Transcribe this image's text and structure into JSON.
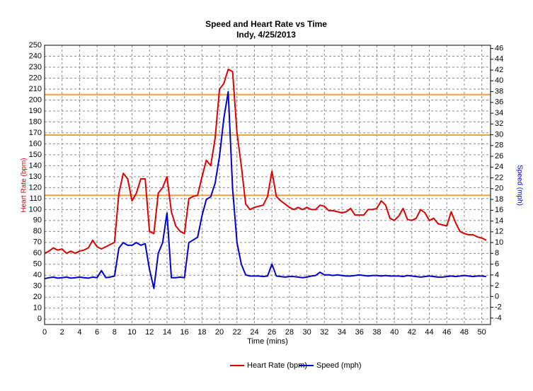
{
  "chart_data": {
    "type": "line",
    "title": "Speed and Heart Rate vs Time",
    "subtitle": "Indy, 4/25/2013",
    "xlabel": "Time (mins)",
    "ylabel": "Heart Rate (bpm)",
    "y2label": "Speed (mph)",
    "xlim": [
      0,
      51
    ],
    "xticks": [
      0,
      2,
      4,
      6,
      8,
      10,
      12,
      14,
      16,
      18,
      20,
      22,
      24,
      26,
      28,
      30,
      32,
      34,
      36,
      38,
      40,
      42,
      44,
      46,
      48,
      50
    ],
    "ylim": [
      -5,
      250
    ],
    "yticks": [
      0,
      10,
      20,
      30,
      40,
      50,
      60,
      70,
      80,
      90,
      100,
      110,
      120,
      130,
      140,
      150,
      160,
      170,
      180,
      190,
      200,
      210,
      220,
      230,
      240,
      250
    ],
    "y2lim": [
      -5.2,
      46.6
    ],
    "y2ticks": [
      -4,
      -2,
      0,
      2,
      4,
      6,
      8,
      10,
      12,
      14,
      16,
      18,
      20,
      22,
      24,
      26,
      28,
      30,
      32,
      34,
      36,
      38,
      40,
      42,
      44,
      46
    ],
    "grid": true,
    "reference_lines": [
      {
        "value": 205,
        "color": "#f5a040"
      },
      {
        "value": 168,
        "color": "#f5a040"
      },
      {
        "value": 113,
        "color": "#f5a040"
      }
    ],
    "x": [
      0,
      0.5,
      1,
      1.5,
      2,
      2.5,
      3,
      3.5,
      4,
      4.5,
      5,
      5.5,
      6,
      6.5,
      7,
      7.5,
      8,
      8.5,
      9,
      9.5,
      10,
      10.5,
      11,
      11.5,
      12,
      12.5,
      13,
      13.5,
      14,
      14.5,
      15,
      15.5,
      16,
      16.5,
      17,
      17.5,
      18,
      18.5,
      19,
      19.5,
      20,
      20.5,
      21,
      21.5,
      22,
      22.5,
      23,
      23.5,
      24,
      24.5,
      25,
      25.5,
      26,
      26.5,
      27,
      27.5,
      28,
      28.5,
      29,
      29.5,
      30,
      30.5,
      31,
      31.5,
      32,
      32.5,
      33,
      33.5,
      34,
      34.5,
      35,
      35.5,
      36,
      36.5,
      37,
      37.5,
      38,
      38.5,
      39,
      39.5,
      40,
      40.5,
      41,
      41.5,
      42,
      42.5,
      43,
      43.5,
      44,
      44.5,
      45,
      45.5,
      46,
      46.5,
      47,
      47.5,
      48,
      48.5,
      49,
      49.5,
      50,
      50.5
    ],
    "series": [
      {
        "name": "Heart Rate (bpm)",
        "color": "#e00000",
        "axis": "y",
        "values": [
          60,
          62,
          65,
          63,
          64,
          60,
          62,
          60,
          62,
          63,
          65,
          72,
          66,
          64,
          66,
          68,
          70,
          115,
          133,
          128,
          108,
          115,
          128,
          128,
          80,
          78,
          115,
          120,
          130,
          98,
          85,
          80,
          78,
          110,
          112,
          113,
          130,
          145,
          140,
          165,
          210,
          215,
          228,
          226,
          170,
          140,
          105,
          100,
          102,
          103,
          104,
          112,
          135,
          112,
          108,
          105,
          102,
          100,
          102,
          100,
          102,
          100,
          100,
          104,
          103,
          99,
          99,
          98,
          97,
          98,
          101,
          95,
          95,
          95,
          100,
          100,
          101,
          108,
          104,
          92,
          90,
          94,
          101,
          91,
          90,
          92,
          100,
          97,
          90,
          92,
          87,
          86,
          85,
          98,
          88,
          80,
          78,
          77,
          77,
          75,
          74,
          72
        ]
      },
      {
        "name": "Speed (mph)",
        "color": "#0000d0",
        "axis": "y2",
        "values": [
          3.3,
          3.5,
          3.6,
          3.4,
          3.5,
          3.6,
          3.4,
          3.5,
          3.6,
          3.5,
          3.4,
          3.6,
          3.5,
          4.8,
          3.5,
          3.6,
          3.8,
          9.0,
          10.0,
          9.5,
          9.5,
          10.0,
          9.5,
          9.8,
          5.0,
          1.5,
          8.0,
          10.0,
          15.5,
          3.5,
          3.5,
          3.6,
          3.5,
          10.0,
          10.5,
          11.0,
          15.0,
          18.0,
          18.5,
          21.0,
          26.0,
          33.0,
          38.0,
          20.0,
          10.0,
          6.0,
          4.0,
          3.8,
          3.8,
          3.8,
          3.7,
          3.8,
          6.0,
          3.8,
          3.7,
          3.6,
          3.7,
          3.7,
          3.6,
          3.5,
          3.6,
          3.8,
          3.9,
          4.5,
          4.0,
          4.0,
          3.9,
          4.0,
          3.9,
          3.8,
          3.8,
          3.9,
          4.0,
          3.9,
          3.8,
          3.9,
          3.9,
          3.8,
          3.9,
          3.8,
          3.8,
          3.8,
          3.7,
          3.9,
          3.8,
          3.7,
          3.6,
          3.7,
          3.8,
          3.7,
          3.6,
          3.6,
          3.7,
          3.8,
          3.7,
          3.8,
          3.9,
          3.8,
          3.7,
          3.8,
          3.8,
          3.7
        ]
      }
    ]
  }
}
